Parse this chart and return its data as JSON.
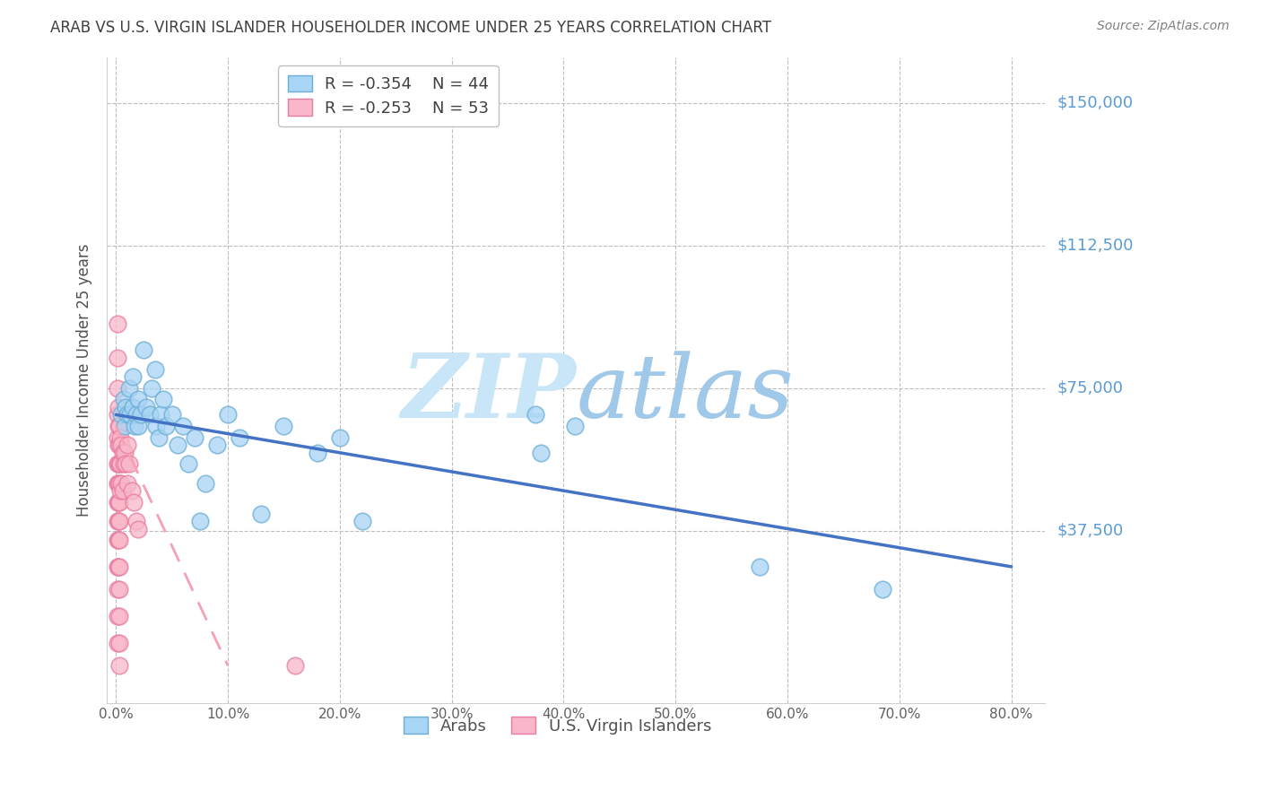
{
  "title": "ARAB VS U.S. VIRGIN ISLANDER HOUSEHOLDER INCOME UNDER 25 YEARS CORRELATION CHART",
  "source": "Source: ZipAtlas.com",
  "ylabel": "Householder Income Under 25 years",
  "xlabel_ticks": [
    "0.0%",
    "10.0%",
    "20.0%",
    "30.0%",
    "40.0%",
    "50.0%",
    "60.0%",
    "70.0%",
    "80.0%"
  ],
  "xlabel_vals": [
    0.0,
    0.1,
    0.2,
    0.3,
    0.4,
    0.5,
    0.6,
    0.7,
    0.8
  ],
  "ytick_labels": [
    "$37,500",
    "$75,000",
    "$112,500",
    "$150,000"
  ],
  "ytick_vals": [
    37500,
    75000,
    112500,
    150000
  ],
  "xlim": [
    -0.008,
    0.83
  ],
  "ylim": [
    -8000,
    162000
  ],
  "arab_R": "-0.354",
  "arab_N": "44",
  "vi_R": "-0.253",
  "vi_N": "53",
  "arab_color": "#A8D4F5",
  "arab_edge_color": "#6AAED6",
  "vi_color": "#F9B8C9",
  "vi_edge_color": "#E87DA0",
  "arab_line_color": "#4472C4",
  "vi_line_color": "#F4A0B5",
  "background_color": "#FFFFFF",
  "grid_color": "#BEBEBE",
  "title_color": "#404040",
  "ytick_color": "#5B9BD5",
  "watermark_zip_color": "#C8E6F8",
  "watermark_atlas_color": "#A0C8E8",
  "arab_x": [
    0.005,
    0.007,
    0.008,
    0.009,
    0.01,
    0.012,
    0.013,
    0.015,
    0.015,
    0.017,
    0.018,
    0.02,
    0.02,
    0.022,
    0.025,
    0.027,
    0.03,
    0.032,
    0.035,
    0.036,
    0.038,
    0.04,
    0.042,
    0.045,
    0.05,
    0.055,
    0.06,
    0.065,
    0.07,
    0.075,
    0.08,
    0.09,
    0.1,
    0.11,
    0.13,
    0.15,
    0.18,
    0.2,
    0.22,
    0.375,
    0.38,
    0.41,
    0.575,
    0.685
  ],
  "arab_y": [
    68000,
    72000,
    65000,
    70000,
    68000,
    75000,
    68000,
    78000,
    70000,
    65000,
    68000,
    72000,
    65000,
    68000,
    85000,
    70000,
    68000,
    75000,
    80000,
    65000,
    62000,
    68000,
    72000,
    65000,
    68000,
    60000,
    65000,
    55000,
    62000,
    40000,
    50000,
    60000,
    68000,
    62000,
    42000,
    65000,
    58000,
    62000,
    40000,
    68000,
    58000,
    65000,
    28000,
    22000
  ],
  "vi_x": [
    0.001,
    0.001,
    0.001,
    0.001,
    0.001,
    0.001,
    0.001,
    0.001,
    0.001,
    0.001,
    0.001,
    0.001,
    0.001,
    0.001,
    0.002,
    0.002,
    0.002,
    0.002,
    0.002,
    0.002,
    0.002,
    0.002,
    0.002,
    0.003,
    0.003,
    0.003,
    0.003,
    0.003,
    0.003,
    0.003,
    0.003,
    0.003,
    0.003,
    0.003,
    0.003,
    0.004,
    0.004,
    0.004,
    0.005,
    0.005,
    0.006,
    0.006,
    0.007,
    0.008,
    0.009,
    0.01,
    0.01,
    0.012,
    0.014,
    0.016,
    0.018,
    0.02,
    0.16
  ],
  "vi_y": [
    92000,
    83000,
    75000,
    68000,
    62000,
    55000,
    50000,
    45000,
    40000,
    35000,
    28000,
    22000,
    15000,
    8000,
    70000,
    65000,
    60000,
    55000,
    50000,
    45000,
    40000,
    35000,
    28000,
    65000,
    60000,
    55000,
    50000,
    45000,
    40000,
    35000,
    28000,
    22000,
    15000,
    8000,
    2000,
    62000,
    55000,
    48000,
    60000,
    50000,
    58000,
    48000,
    55000,
    58000,
    55000,
    60000,
    50000,
    55000,
    48000,
    45000,
    40000,
    38000,
    2000
  ],
  "arab_line_x": [
    0.0,
    0.8
  ],
  "arab_line_y": [
    68000,
    28000
  ],
  "vi_line_x": [
    0.0,
    0.1
  ],
  "vi_line_y": [
    65000,
    2000
  ]
}
